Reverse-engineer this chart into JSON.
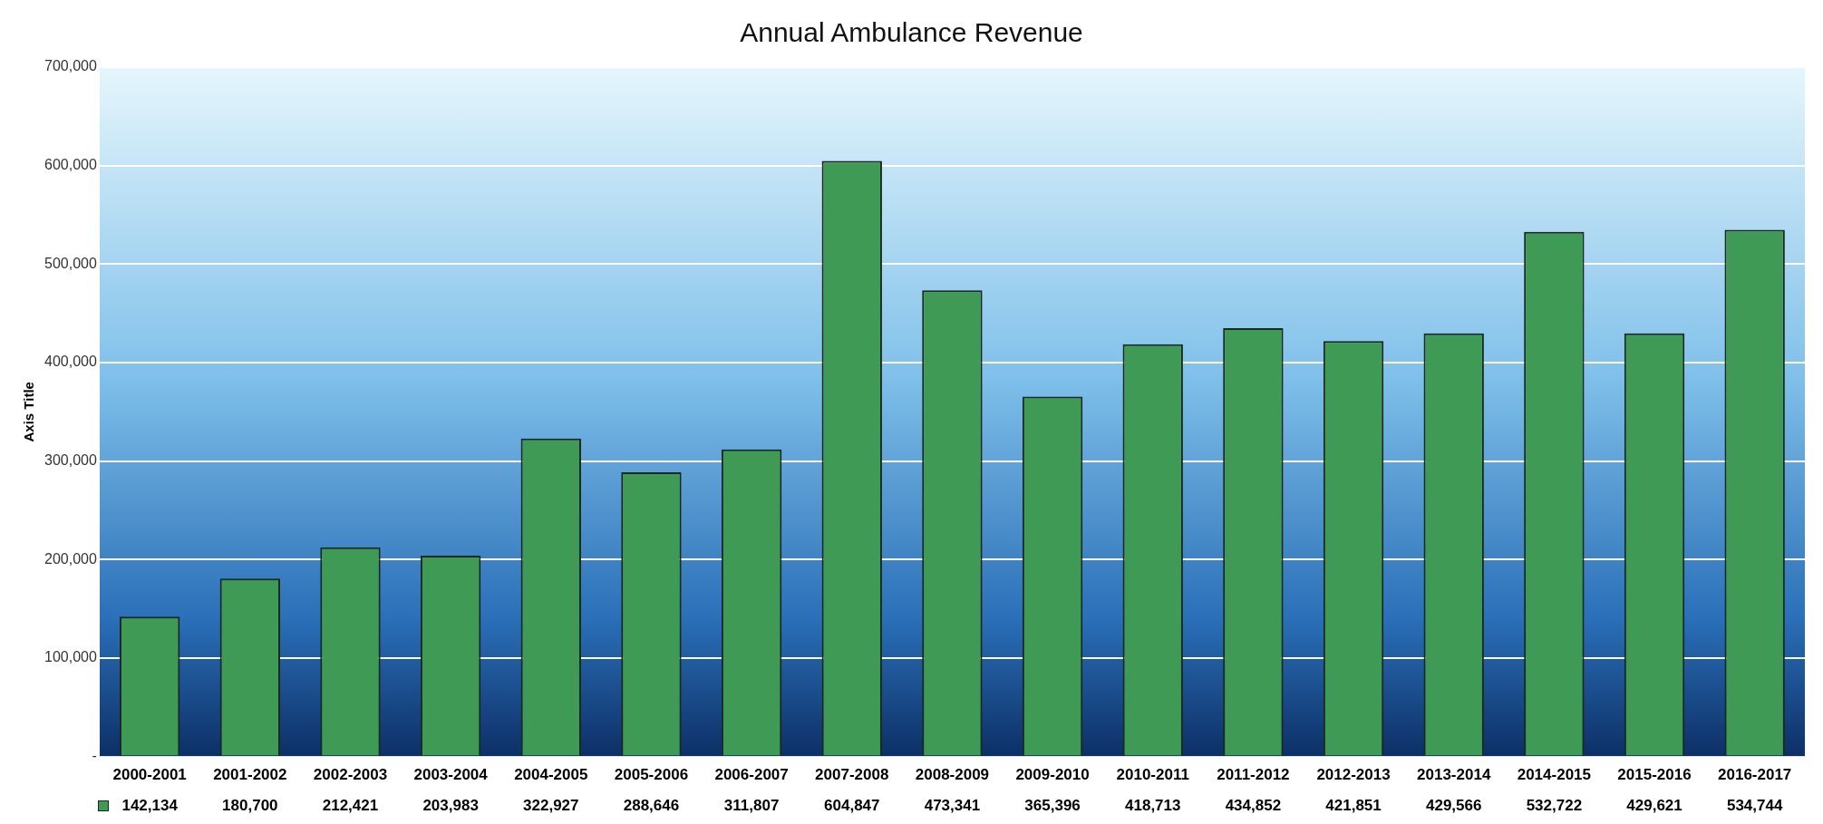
{
  "chart_data": {
    "type": "bar",
    "title": "Annual Ambulance Revenue",
    "ylabel": "Axis Title",
    "categories": [
      "2000-2001",
      "2001-2002",
      "2002-2003",
      "2003-2004",
      "2004-2005",
      "2005-2006",
      "2006-2007",
      "2007-2008",
      "2008-2009",
      "2009-2010",
      "2010-2011",
      "2011-2012",
      "2012-2013",
      "2013-2014",
      "2014-2015",
      "2015-2016",
      "2016-2017"
    ],
    "values": [
      142134,
      180700,
      212421,
      203983,
      322927,
      288646,
      311807,
      604847,
      473341,
      365396,
      418713,
      434852,
      421851,
      429566,
      532722,
      429621,
      534744
    ],
    "color": "#3f9a55",
    "ylim": [
      0,
      700000
    ],
    "yticks": [
      {
        "value": 0,
        "label": "-"
      },
      {
        "value": 100000,
        "label": "100,000"
      },
      {
        "value": 200000,
        "label": "200,000"
      },
      {
        "value": 300000,
        "label": "300,000"
      },
      {
        "value": 400000,
        "label": "400,000"
      },
      {
        "value": 500000,
        "label": "500,000"
      },
      {
        "value": 600000,
        "label": "600,000"
      },
      {
        "value": 700000,
        "label": "700,000"
      }
    ],
    "value_labels": [
      "142,134",
      "180,700",
      "212,421",
      "203,983",
      "322,927",
      "288,646",
      "311,807",
      "604,847",
      "473,341",
      "365,396",
      "418,713",
      "434,852",
      "421,851",
      "429,566",
      "532,722",
      "429,621",
      "534,744"
    ],
    "grid": "y"
  }
}
